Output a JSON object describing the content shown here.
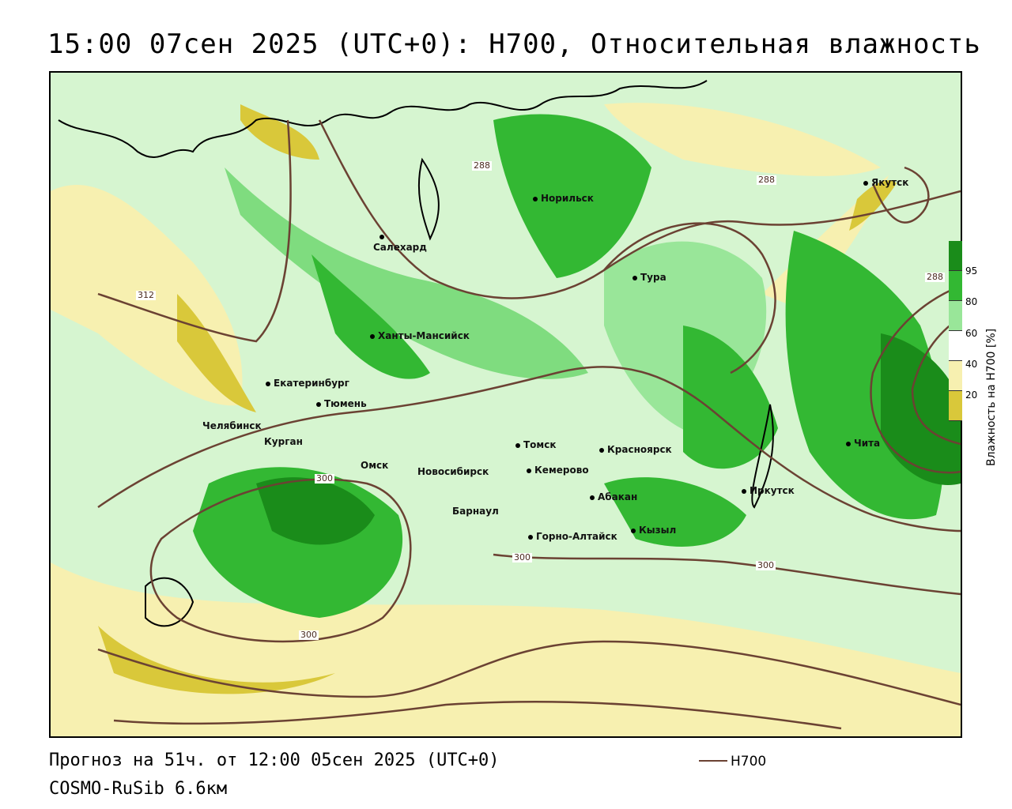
{
  "title": "15:00 07сен 2025 (UTC+0): H700, Относительная влажность",
  "footer": {
    "forecast": "Прогноз на 51ч. от 12:00 05сен 2025 (UTC+0)",
    "model": "COSMO-RuSib 6.6км"
  },
  "legend": {
    "line_label": "H700",
    "line_color": "#6b4233"
  },
  "colorbar": {
    "title": "Влажность на H700 [%]",
    "ticks": [
      "95",
      "80",
      "60",
      "40",
      "20"
    ],
    "colors": {
      "very_wet": "#1a8c1a",
      "wet": "#33b833",
      "moist": "#99e699",
      "light": "#ccf5cc",
      "neutral": "#ffffff",
      "dry": "#f7f0b0",
      "very_dry": "#d9c83a"
    }
  },
  "cities": [
    {
      "name": "Якутск"
    },
    {
      "name": "Норильск"
    },
    {
      "name": "Салехард"
    },
    {
      "name": "Тура"
    },
    {
      "name": "Ханты-Мансийск"
    },
    {
      "name": "Екатеринбург"
    },
    {
      "name": "Тюмень"
    },
    {
      "name": "Челябинск"
    },
    {
      "name": "Курган"
    },
    {
      "name": "Омск"
    },
    {
      "name": "Новосибирск"
    },
    {
      "name": "Томск"
    },
    {
      "name": "Кемерово"
    },
    {
      "name": "Красноярск"
    },
    {
      "name": "Абакан"
    },
    {
      "name": "Иркутск"
    },
    {
      "name": "Чита"
    },
    {
      "name": "Барнаул"
    },
    {
      "name": "Горно-Алтайск"
    },
    {
      "name": "Кызыл"
    }
  ],
  "contour_labels": [
    "288",
    "288",
    "288",
    "312",
    "300",
    "300",
    "300",
    "300"
  ]
}
